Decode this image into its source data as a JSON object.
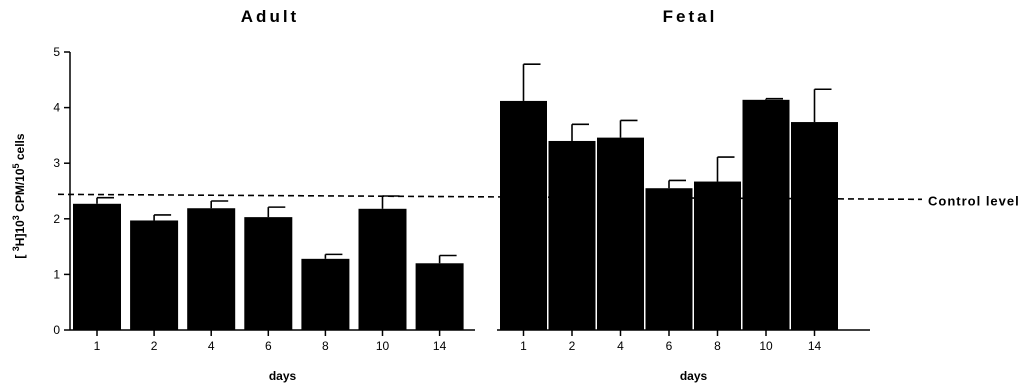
{
  "chart_data": {
    "type": "bar",
    "ylabel_parts": {
      "open": "[",
      "iso_exp": "3",
      "mid": "H]10",
      "mid_exp": "3",
      "unit": "CPM/10",
      "unit_exp": "5",
      "tail": "cells"
    },
    "ylim": [
      0,
      5
    ],
    "yticks": [
      "0",
      "1",
      "2",
      "3",
      "4",
      "5"
    ],
    "control_level": 2.35,
    "control_label": "Control level",
    "grid": false,
    "panels": [
      {
        "title": "Adult",
        "xlabel": "days",
        "categories": [
          "1",
          "2",
          "4",
          "6",
          "8",
          "10",
          "14"
        ],
        "values": [
          2.27,
          1.97,
          2.19,
          2.03,
          1.28,
          2.18,
          1.2
        ],
        "errors": [
          0.11,
          0.1,
          0.13,
          0.18,
          0.08,
          0.23,
          0.14
        ]
      },
      {
        "title": "Fetal",
        "xlabel": "days",
        "categories": [
          "1",
          "2",
          "4",
          "6",
          "8",
          "10",
          "14"
        ],
        "values": [
          4.12,
          3.4,
          3.46,
          2.55,
          2.67,
          4.14,
          3.74
        ],
        "errors": [
          0.66,
          0.3,
          0.31,
          0.14,
          0.44,
          0.02,
          0.59
        ]
      }
    ]
  }
}
